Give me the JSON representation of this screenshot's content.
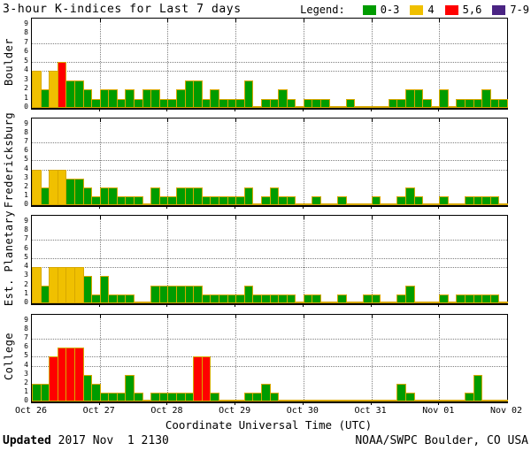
{
  "title": "3-hour K-indices for Last 7 days",
  "legend": {
    "label": "Legend:",
    "items": [
      {
        "label": "0-3",
        "color": "#009C00"
      },
      {
        "label": "4",
        "color": "#F0C000"
      },
      {
        "label": "5,6",
        "color": "#FF0000"
      },
      {
        "label": "7-9",
        "color": "#4A2483"
      }
    ]
  },
  "footer": {
    "updated_label": "Updated",
    "updated_value": " 2017 Nov  1 2130",
    "source": "NOAA/SWPC Boulder, CO USA"
  },
  "chart_data": {
    "type": "bar",
    "title": "3-hour K-indices for Last 7 days",
    "xlabel": "Coordinate Universal Time (UTC)",
    "x_day_labels": [
      "Oct 26",
      "Oct 27",
      "Oct 28",
      "Oct 29",
      "Oct 30",
      "Oct 31",
      "Nov 01",
      "Nov 02"
    ],
    "bars_per_day": 8,
    "ylim": [
      0,
      9
    ],
    "y_ticks": [
      0,
      1,
      2,
      3,
      4,
      5,
      6,
      7,
      8,
      9
    ],
    "dotted_k_levels": [
      4,
      5,
      7
    ],
    "grid": "dotted day boundaries vertical, K=4/5/7 horizontal",
    "legend_position": "top-right",
    "k_color_map": {
      "0-3": "#009C00",
      "4": "#F0C000",
      "5,6": "#FF0000",
      "7-9": "#4A2483"
    },
    "bar_outline_color": "#D7A800",
    "series": [
      {
        "name": "Boulder",
        "values": [
          4,
          2,
          4,
          5,
          3,
          3,
          2,
          1,
          2,
          2,
          1,
          2,
          1,
          2,
          2,
          1,
          1,
          2,
          3,
          3,
          1,
          2,
          1,
          1,
          1,
          3,
          0,
          1,
          1,
          2,
          1,
          0,
          1,
          1,
          1,
          0,
          0,
          1,
          0,
          0,
          0,
          0,
          1,
          1,
          2,
          2,
          1,
          0,
          2,
          0,
          1,
          1,
          1,
          2,
          1,
          1
        ]
      },
      {
        "name": "Fredericksburg",
        "values": [
          4,
          2,
          4,
          4,
          3,
          3,
          2,
          1,
          2,
          2,
          1,
          1,
          1,
          0,
          2,
          1,
          1,
          2,
          2,
          2,
          1,
          1,
          1,
          1,
          1,
          2,
          0,
          1,
          2,
          1,
          1,
          0,
          0,
          1,
          0,
          0,
          1,
          0,
          0,
          0,
          1,
          0,
          0,
          1,
          2,
          1,
          0,
          0,
          1,
          0,
          0,
          1,
          1,
          1,
          1,
          0
        ]
      },
      {
        "name": "Est. Planetary",
        "values": [
          4,
          2,
          4,
          4,
          4,
          4,
          3,
          1,
          3,
          1,
          1,
          1,
          0,
          0,
          2,
          2,
          2,
          2,
          2,
          2,
          1,
          1,
          1,
          1,
          1,
          2,
          1,
          1,
          1,
          1,
          1,
          0,
          1,
          1,
          0,
          0,
          1,
          0,
          0,
          1,
          1,
          0,
          0,
          1,
          2,
          0,
          0,
          0,
          1,
          0,
          1,
          1,
          1,
          1,
          1,
          0
        ]
      },
      {
        "name": "College",
        "values": [
          2,
          2,
          5,
          6,
          6,
          6,
          3,
          2,
          1,
          1,
          1,
          3,
          1,
          0,
          1,
          1,
          1,
          1,
          1,
          5,
          5,
          1,
          0,
          0,
          0,
          1,
          1,
          2,
          1,
          0,
          0,
          0,
          0,
          0,
          0,
          0,
          0,
          0,
          0,
          0,
          0,
          0,
          0,
          2,
          1,
          0,
          0,
          0,
          0,
          0,
          0,
          1,
          3,
          0,
          0,
          0
        ]
      }
    ]
  }
}
